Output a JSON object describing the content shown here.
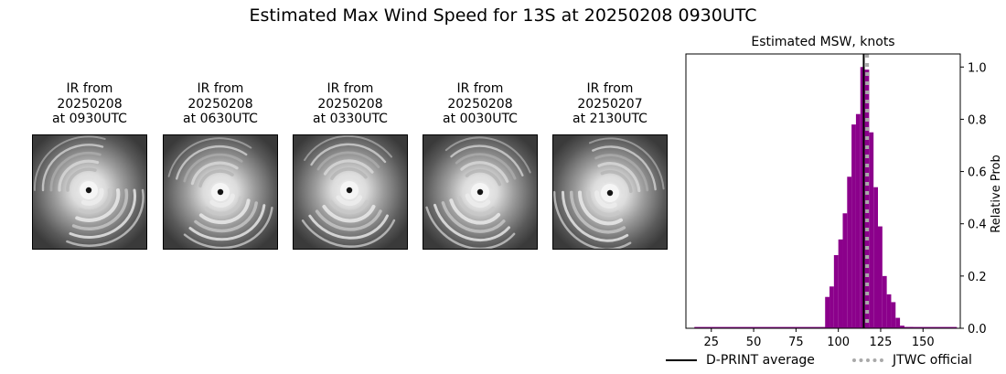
{
  "figure": {
    "suptitle": "Estimated Max Wind Speed for 13S at 20250208 0930UTC"
  },
  "ir_panels": [
    {
      "line1": "IR from",
      "line2": "20250208",
      "line3": "at 0930UTC"
    },
    {
      "line1": "IR from",
      "line2": "20250208",
      "line3": "at 0630UTC"
    },
    {
      "line1": "IR from",
      "line2": "20250208",
      "line3": "at 0330UTC"
    },
    {
      "line1": "IR from",
      "line2": "20250208",
      "line3": "at 0030UTC"
    },
    {
      "line1": "IR from",
      "line2": "20250207",
      "line3": "at 2130UTC"
    }
  ],
  "legend": {
    "dprint_label": "D-PRINT average",
    "jtwc_label": "JTWC official"
  },
  "chart_data": {
    "type": "bar",
    "title": "Estimated MSW, knots",
    "xlabel": "",
    "ylabel": "Relative Prob",
    "xlim": [
      10,
      172
    ],
    "ylim": [
      0,
      1.05
    ],
    "xticks": [
      25,
      50,
      75,
      100,
      125,
      150
    ],
    "yticks": [
      0.0,
      0.2,
      0.4,
      0.6,
      0.8,
      1.0
    ],
    "bin_width": 2.6,
    "bins": [
      {
        "x": 93.5,
        "y": 0.12
      },
      {
        "x": 96.1,
        "y": 0.16
      },
      {
        "x": 98.7,
        "y": 0.28
      },
      {
        "x": 101.3,
        "y": 0.34
      },
      {
        "x": 103.9,
        "y": 0.44
      },
      {
        "x": 106.5,
        "y": 0.58
      },
      {
        "x": 109.1,
        "y": 0.78
      },
      {
        "x": 111.7,
        "y": 0.82
      },
      {
        "x": 114.3,
        "y": 1.0
      },
      {
        "x": 116.9,
        "y": 0.99
      },
      {
        "x": 119.5,
        "y": 0.75
      },
      {
        "x": 122.1,
        "y": 0.54
      },
      {
        "x": 124.7,
        "y": 0.39
      },
      {
        "x": 127.3,
        "y": 0.2
      },
      {
        "x": 129.9,
        "y": 0.13
      },
      {
        "x": 132.5,
        "y": 0.1
      },
      {
        "x": 135.1,
        "y": 0.04
      },
      {
        "x": 137.7,
        "y": 0.01
      },
      {
        "x": 140.3,
        "y": 0.005
      },
      {
        "x": 142.9,
        "y": 0.005
      }
    ],
    "baseline_range": [
      15,
      170
    ],
    "dprint_average": 115,
    "jtwc_official": 117,
    "bar_color": "#8b008b",
    "dprint_color": "#000000",
    "jtwc_color": "#a9a9a9"
  }
}
